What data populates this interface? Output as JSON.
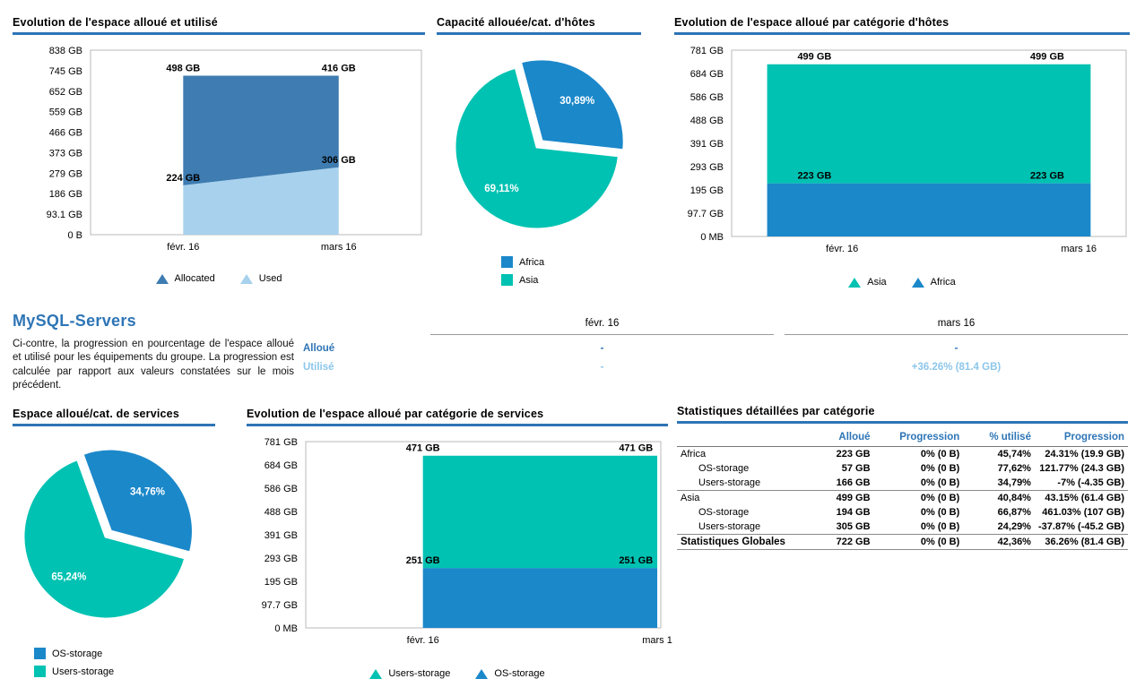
{
  "accent": {
    "title_bar": "#2e74b5",
    "heading_blue": "#2e75b6",
    "steel_blue": "#3e7cb1",
    "light_blue": "#a7d1ed",
    "bright_blue": "#1b88ca",
    "teal": "#00c2b2",
    "utilise_blue": "#8cc6ea"
  },
  "summary": {
    "heading": "MySQL-Servers",
    "description": "Ci-contre, la progression en pourcentage de l'espace alloué et utilisé pour les équipements du groupe. La progression est calculée par rapport aux valeurs constatées sur le mois précédent."
  },
  "chart_data": [
    {
      "type": "area",
      "stacked": true,
      "title": "Evolution de l'espace alloué et utilisé",
      "y_max": 838,
      "y_ticks": [
        "838 GB",
        "745 GB",
        "652 GB",
        "559 GB",
        "466 GB",
        "373 GB",
        "279 GB",
        "186 GB",
        "93.1 GB",
        "0 B"
      ],
      "categories": [
        "févr. 16",
        "mars 16"
      ],
      "series": [
        {
          "name": "Used",
          "values": [
            224,
            306
          ],
          "labels": [
            "224 GB",
            "306 GB"
          ],
          "color": "#a7d1ed"
        },
        {
          "name": "Allocated",
          "values": [
            498,
            416
          ],
          "labels": [
            "498 GB",
            "416 GB"
          ],
          "color": "#3e7cb1"
        }
      ],
      "legend": [
        {
          "label": "Allocated",
          "color": "#3e7cb1"
        },
        {
          "label": "Used",
          "color": "#a7d1ed"
        }
      ]
    },
    {
      "type": "pie",
      "title": "Capacité allouée/cat. d'hôtes",
      "slices": [
        {
          "name": "Africa",
          "pct": 30.89,
          "label": "30,89%",
          "color": "#1b88ca"
        },
        {
          "name": "Asia",
          "pct": 69.11,
          "label": "69,11%",
          "color": "#00c2b2"
        }
      ],
      "legend": [
        {
          "label": "Africa",
          "color": "#1b88ca"
        },
        {
          "label": "Asia",
          "color": "#00c2b2"
        }
      ]
    },
    {
      "type": "area",
      "stacked": true,
      "title": "Evolution de l'espace alloué par catégorie d'hôtes",
      "y_max": 781,
      "y_ticks": [
        "781 GB",
        "684 GB",
        "586 GB",
        "488 GB",
        "391 GB",
        "293 GB",
        "195 GB",
        "97.7 GB",
        "0 MB"
      ],
      "categories": [
        "févr. 16",
        "mars 16"
      ],
      "series": [
        {
          "name": "Africa",
          "values": [
            223,
            223
          ],
          "labels": [
            "223 GB",
            "223 GB"
          ],
          "color": "#1b88ca"
        },
        {
          "name": "Asia",
          "values": [
            499,
            499
          ],
          "labels": [
            "499 GB",
            "499 GB"
          ],
          "color": "#00c2b2"
        }
      ],
      "legend": [
        {
          "label": "Asia",
          "color": "#00c2b2"
        },
        {
          "label": "Africa",
          "color": "#1b88ca"
        }
      ]
    },
    {
      "type": "table",
      "title": "",
      "columns": [
        "févr. 16",
        "mars 16"
      ],
      "rows": [
        {
          "label": "Alloué",
          "values": [
            "-",
            "-"
          ],
          "color": "#2e74b5"
        },
        {
          "label": "Utilisé",
          "values": [
            "-",
            "+36.26% (81.4 GB)"
          ],
          "color": "#8cc6ea"
        }
      ]
    },
    {
      "type": "pie",
      "title": "Espace alloué/cat. de services",
      "slices": [
        {
          "name": "OS-storage",
          "pct": 34.76,
          "label": "34,76%",
          "color": "#1b88ca"
        },
        {
          "name": "Users-storage",
          "pct": 65.24,
          "label": "65,24%",
          "color": "#00c2b2"
        }
      ],
      "legend": [
        {
          "label": "OS-storage",
          "color": "#1b88ca"
        },
        {
          "label": "Users-storage",
          "color": "#00c2b2"
        }
      ]
    },
    {
      "type": "area",
      "stacked": true,
      "title": "Evolution de l'espace alloué par catégorie de services",
      "y_max": 781,
      "y_ticks": [
        "781 GB",
        "684 GB",
        "586 GB",
        "488 GB",
        "391 GB",
        "293 GB",
        "195 GB",
        "97.7 GB",
        "0 MB"
      ],
      "categories": [
        "févr. 16",
        "mars 1"
      ],
      "series": [
        {
          "name": "OS-storage",
          "values": [
            251,
            251
          ],
          "labels": [
            "251 GB",
            "251 GB"
          ],
          "color": "#1b88ca"
        },
        {
          "name": "Users-storage",
          "values": [
            471,
            471
          ],
          "labels": [
            "471 GB",
            "471 GB"
          ],
          "color": "#00c2b2"
        }
      ],
      "legend": [
        {
          "label": "Users-storage",
          "color": "#00c2b2"
        },
        {
          "label": "OS-storage",
          "color": "#1b88ca"
        }
      ]
    },
    {
      "type": "table",
      "title": "Statistiques détaillées par catégorie",
      "headers": [
        "",
        "Alloué",
        "Progression",
        "% utilisé",
        "Progression"
      ],
      "rows": [
        {
          "label": "Africa",
          "indent": false,
          "values": [
            "223 GB",
            "0% (0 B)",
            "45,74%",
            "24.31% (19.9 GB)"
          ]
        },
        {
          "label": "OS-storage",
          "indent": true,
          "values": [
            "57 GB",
            "0% (0 B)",
            "77,62%",
            "121.77% (24.3 GB)"
          ]
        },
        {
          "label": "Users-storage",
          "indent": true,
          "sep": true,
          "values": [
            "166 GB",
            "0% (0 B)",
            "34,79%",
            "-7% (-4.35 GB)"
          ]
        },
        {
          "label": "Asia",
          "indent": false,
          "values": [
            "499 GB",
            "0% (0 B)",
            "40,84%",
            "43.15% (61.4 GB)"
          ]
        },
        {
          "label": "OS-storage",
          "indent": true,
          "values": [
            "194 GB",
            "0% (0 B)",
            "66,87%",
            "461.03% (107 GB)"
          ]
        },
        {
          "label": "Users-storage",
          "indent": true,
          "sep": true,
          "values": [
            "305 GB",
            "0% (0 B)",
            "24,29%",
            "-37.87% (-45.2 GB)"
          ]
        },
        {
          "label": "Statistiques Globales",
          "indent": false,
          "bold": true,
          "values": [
            "722 GB",
            "0% (0 B)",
            "42,36%",
            "36.26% (81.4 GB)"
          ]
        }
      ]
    }
  ]
}
